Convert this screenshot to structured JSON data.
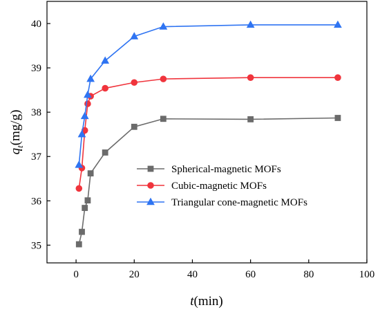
{
  "chart_data": {
    "type": "line",
    "title": "",
    "xlabel": {
      "italic": "t",
      "rest": "(min)"
    },
    "ylabel": {
      "italic": "q",
      "sub": "t",
      "rest": "(mg/g)"
    },
    "xlim": [
      -10,
      100
    ],
    "ylim": [
      34.6,
      40.5
    ],
    "xticks": [
      0,
      20,
      40,
      60,
      80,
      100
    ],
    "yticks": [
      35,
      36,
      37,
      38,
      39,
      40
    ],
    "grid": false,
    "legend_position": "center-right",
    "series": [
      {
        "name": "Spherical-magnetic MOFs",
        "color": "#6b6b6b",
        "marker": "square",
        "x": [
          1,
          2,
          3,
          4,
          5,
          10,
          20,
          30,
          60,
          90
        ],
        "y": [
          35.02,
          35.3,
          35.84,
          36.01,
          36.62,
          37.09,
          37.67,
          37.85,
          37.84,
          37.87
        ]
      },
      {
        "name": "Cubic-magnetic MOFs",
        "color": "#f0343c",
        "marker": "circle",
        "x": [
          1,
          2,
          3,
          4,
          5,
          10,
          20,
          30,
          60,
          90
        ],
        "y": [
          36.28,
          36.74,
          37.59,
          38.19,
          38.36,
          38.54,
          38.67,
          38.75,
          38.78,
          38.78
        ]
      },
      {
        "name": "Triangular cone-magnetic MOFs",
        "color": "#2f74f2",
        "marker": "triangle",
        "x": [
          1,
          2,
          3,
          4,
          5,
          10,
          20,
          30,
          60,
          90
        ],
        "y": [
          36.81,
          37.5,
          37.91,
          38.39,
          38.75,
          39.16,
          39.71,
          39.93,
          39.97,
          39.97
        ]
      }
    ]
  }
}
